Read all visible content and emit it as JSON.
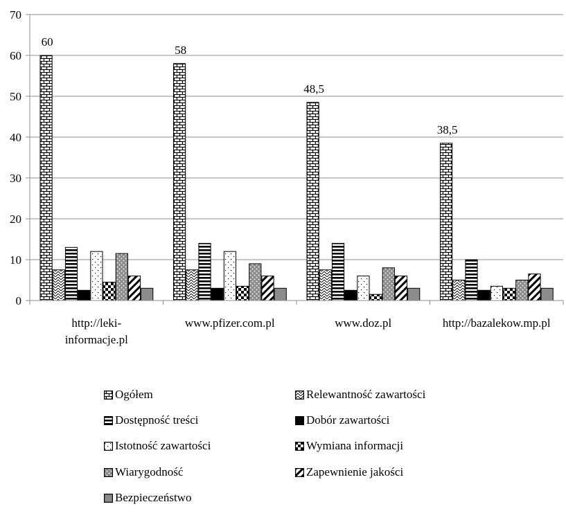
{
  "chart_data": {
    "type": "bar",
    "categories": [
      "http://leki-informacje.pl",
      "www.pfizer.com.pl",
      "www.doz.pl",
      "http://bazalekow.mp.pl"
    ],
    "category_label_lines": [
      [
        "http://leki-",
        "informacje.pl"
      ],
      [
        "www.pfizer.com.pl"
      ],
      [
        "www.doz.pl"
      ],
      [
        "http://bazalekow.mp.pl"
      ]
    ],
    "series": [
      {
        "name": "Ogółem",
        "values": [
          60,
          58,
          48.5,
          38.5
        ],
        "data_labels": [
          "60",
          "58",
          "48,5",
          "38,5"
        ],
        "pattern": "bricks"
      },
      {
        "name": "Relewantność zawartości",
        "values": [
          7.5,
          7.5,
          7.5,
          5
        ],
        "pattern": "zigzag"
      },
      {
        "name": "Dostępność treści",
        "values": [
          13,
          14,
          14,
          10
        ],
        "pattern": "hstripes"
      },
      {
        "name": "Dobór zawartości",
        "values": [
          2.5,
          3,
          2.5,
          2.5
        ],
        "pattern": "solid-black"
      },
      {
        "name": "Istotność zawartości",
        "values": [
          12,
          12,
          6,
          3.5
        ],
        "pattern": "dots"
      },
      {
        "name": "Wymiana informacji",
        "values": [
          4.5,
          3.5,
          1.5,
          3
        ],
        "pattern": "checker"
      },
      {
        "name": "Wiarygodność",
        "values": [
          11.5,
          9,
          8,
          5
        ],
        "pattern": "gray-dots"
      },
      {
        "name": "Zapewnienie jakości",
        "values": [
          6,
          6,
          6,
          6.5
        ],
        "pattern": "diagonal"
      },
      {
        "name": "Bezpieczeństwo",
        "values": [
          3,
          3,
          3,
          3
        ],
        "pattern": "solid-gray"
      }
    ],
    "ylim": [
      0,
      70
    ],
    "yticks": [
      "0",
      "10",
      "20",
      "30",
      "40",
      "50",
      "60",
      "70"
    ],
    "grid": true,
    "legend_position": "bottom"
  }
}
